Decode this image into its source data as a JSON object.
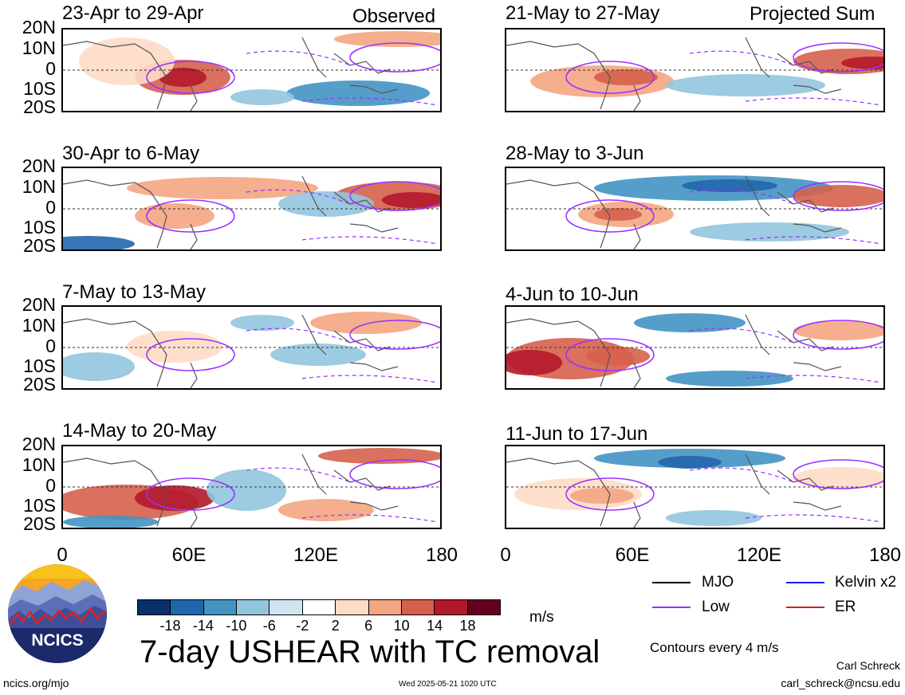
{
  "header": {
    "observed_label": "Observed",
    "projected_label": "Projected Sum"
  },
  "panels": {
    "left": [
      "23-Apr to 29-Apr",
      "30-Apr to 6-May",
      "7-May to 13-May",
      "14-May to 20-May"
    ],
    "right": [
      "21-May to 27-May",
      "28-May to 3-Jun",
      "4-Jun to 10-Jun",
      "11-Jun to 17-Jun"
    ]
  },
  "lat_labels": [
    "20N",
    "10N",
    "0",
    "10S",
    "20S"
  ],
  "lon_labels": [
    "0",
    "60E",
    "120E",
    "180"
  ],
  "colorbar": {
    "labels": [
      "-18",
      "-14",
      "-10",
      "-6",
      "-2",
      "2",
      "6",
      "10",
      "14",
      "18"
    ],
    "colors": [
      "#08306b",
      "#2166ac",
      "#4393c3",
      "#92c5de",
      "#d1e5f0",
      "#ffffff",
      "#fddbc7",
      "#f4a582",
      "#d6604d",
      "#b2182b",
      "#67001f"
    ],
    "units": "m/s"
  },
  "legend": {
    "mjo": "MJO",
    "kelvin": "Kelvin x2",
    "low": "Low",
    "er": "ER",
    "colors": {
      "mjo": "#000000",
      "kelvin": "#1a1aff",
      "low": "#9b30ff",
      "er": "#cc2222"
    }
  },
  "footer": {
    "main_title": "7-day USHEAR with TC removal",
    "contours_note": "Contours every 4 m/s",
    "author": "Carl Schreck",
    "email": "carl_schreck@ncsu.edu",
    "url": "ncics.org/mjo",
    "timestamp": "Wed 2025-05-21 1020 UTC",
    "logo_text": "NCICS"
  }
}
